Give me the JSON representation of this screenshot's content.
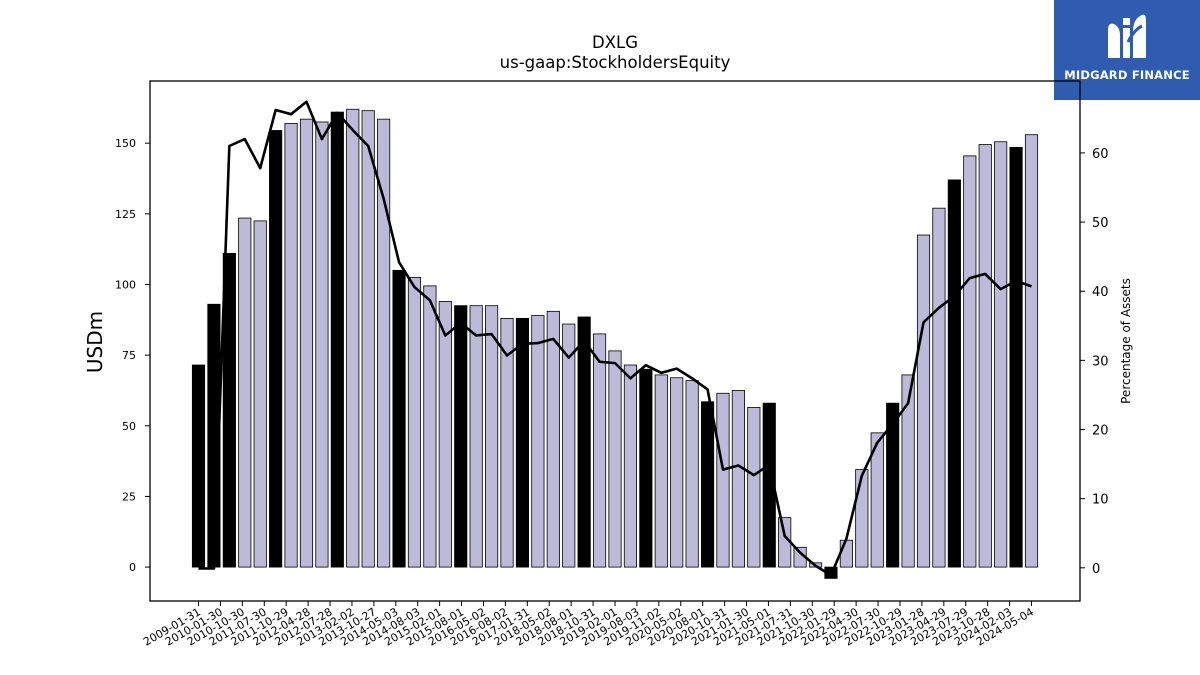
{
  "brand": {
    "name": "MIDGARD FINANCE",
    "logo_icon": "midgard-m-mark-icon",
    "background_color": "#2f5cae"
  },
  "chart_data": {
    "type": "bar",
    "title": "DXLG",
    "subtitle": "us-gaap:StockholdersEquity",
    "ylabel": "USDm",
    "y2label": "Percentage of Assets",
    "ylim": [
      -12,
      172
    ],
    "y2lim": [
      -4.8,
      70.4
    ],
    "yticks": [
      0,
      25,
      50,
      75,
      100,
      125,
      150
    ],
    "y2ticks": [
      0,
      10,
      20,
      30,
      40,
      50,
      60
    ],
    "colors": {
      "annual_bar": "#000000",
      "quarterly_bar": "#bcbad8",
      "line": "#000000"
    },
    "xtick_labels": [
      "2009-01-31",
      "2010-01-30",
      "2010-10-30",
      "2011-07-30",
      "2011-10-29",
      "2012-04-28",
      "2012-07-28",
      "2013-02-02",
      "2013-10-27",
      "2014-05-03",
      "2014-08-03",
      "2015-02-01",
      "2015-08-01",
      "2016-05-02",
      "2016-08-02",
      "2017-01-31",
      "2018-05-02",
      "2018-08-01",
      "2018-10-31",
      "2019-02-01",
      "2019-08-03",
      "2019-11-02",
      "2020-05-02",
      "2020-08-01",
      "2020-10-31",
      "2021-01-30",
      "2021-05-01",
      "2021-07-31",
      "2021-10-30",
      "2022-01-29",
      "2022-04-30",
      "2022-07-30",
      "2022-10-29",
      "2023-01-28",
      "2023-04-29",
      "2023-07-29",
      "2023-10-28",
      "2024-02-03",
      "2024-05-04"
    ],
    "bars": [
      {
        "value": 71.5,
        "annual": true
      },
      {
        "value": 93.0,
        "annual": true
      },
      {
        "value": 111.0,
        "annual": true
      },
      {
        "value": 123.5,
        "annual": false
      },
      {
        "value": 122.5,
        "annual": false
      },
      {
        "value": 154.5,
        "annual": true
      },
      {
        "value": 157.0,
        "annual": false
      },
      {
        "value": 158.5,
        "annual": false
      },
      {
        "value": 157.5,
        "annual": false
      },
      {
        "value": 161.0,
        "annual": true
      },
      {
        "value": 162.0,
        "annual": false
      },
      {
        "value": 161.5,
        "annual": false
      },
      {
        "value": 158.5,
        "annual": false
      },
      {
        "value": 105.0,
        "annual": true
      },
      {
        "value": 102.5,
        "annual": false
      },
      {
        "value": 99.5,
        "annual": false
      },
      {
        "value": 94.0,
        "annual": false
      },
      {
        "value": 92.5,
        "annual": true
      },
      {
        "value": 92.5,
        "annual": false
      },
      {
        "value": 92.5,
        "annual": false
      },
      {
        "value": 88.0,
        "annual": false
      },
      {
        "value": 88.0,
        "annual": true
      },
      {
        "value": 89.0,
        "annual": false
      },
      {
        "value": 90.5,
        "annual": false
      },
      {
        "value": 86.0,
        "annual": false
      },
      {
        "value": 88.5,
        "annual": true
      },
      {
        "value": 82.5,
        "annual": false
      },
      {
        "value": 76.5,
        "annual": false
      },
      {
        "value": 71.5,
        "annual": false
      },
      {
        "value": 70.0,
        "annual": true
      },
      {
        "value": 68.0,
        "annual": false
      },
      {
        "value": 67.0,
        "annual": false
      },
      {
        "value": 66.0,
        "annual": false
      },
      {
        "value": 58.5,
        "annual": true
      },
      {
        "value": 61.5,
        "annual": false
      },
      {
        "value": 62.5,
        "annual": false
      },
      {
        "value": 56.5,
        "annual": false
      },
      {
        "value": 58.0,
        "annual": true
      },
      {
        "value": 17.5,
        "annual": false
      },
      {
        "value": 7.0,
        "annual": false
      },
      {
        "value": 1.5,
        "annual": false
      },
      {
        "value": -4.0,
        "annual": true
      },
      {
        "value": 9.5,
        "annual": false
      },
      {
        "value": 34.5,
        "annual": false
      },
      {
        "value": 47.5,
        "annual": false
      },
      {
        "value": 58.0,
        "annual": true
      },
      {
        "value": 68.0,
        "annual": false
      },
      {
        "value": 117.5,
        "annual": false
      },
      {
        "value": 127.0,
        "annual": false
      },
      {
        "value": 137.0,
        "annual": true
      },
      {
        "value": 145.5,
        "annual": false
      },
      {
        "value": 149.5,
        "annual": false
      },
      {
        "value": 150.5,
        "annual": false
      },
      {
        "value": 148.5,
        "annual": true
      },
      {
        "value": 153.0,
        "annual": false
      }
    ],
    "line_pct_of_assets": [
      -0.1,
      -0.1,
      61.0,
      62.0,
      57.8,
      66.2,
      65.6,
      67.4,
      62.0,
      65.8,
      63.3,
      61.0,
      53.4,
      44.2,
      40.6,
      38.7,
      33.6,
      35.4,
      33.6,
      33.8,
      30.7,
      32.4,
      32.5,
      33.1,
      30.4,
      32.8,
      29.8,
      29.6,
      27.4,
      29.3,
      28.2,
      28.8,
      27.4,
      25.8,
      14.2,
      14.8,
      13.4,
      14.9,
      4.6,
      2.2,
      0.3,
      -1.1,
      4.2,
      13.3,
      18.1,
      20.8,
      23.8,
      35.5,
      37.6,
      39.3,
      41.9,
      42.5,
      40.3,
      41.5,
      40.7
    ]
  }
}
